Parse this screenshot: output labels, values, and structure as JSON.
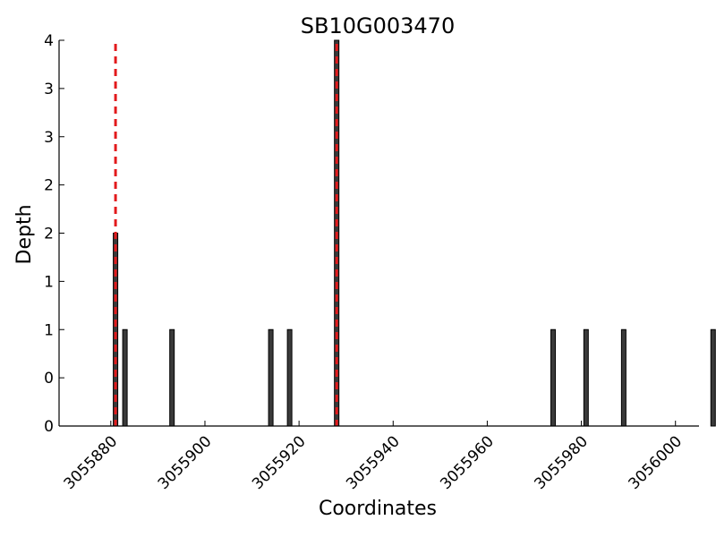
{
  "chart_data": {
    "type": "bar",
    "title": "SB10G003470",
    "xlabel": "Coordinates",
    "ylabel": "Depth",
    "xlim": [
      3055869,
      3056005
    ],
    "ylim": [
      0,
      4
    ],
    "x_ticks": [
      3055880,
      3055900,
      3055920,
      3055940,
      3055960,
      3055980,
      3056000
    ],
    "y_tick_values": [
      0,
      0.5,
      1,
      1.5,
      2,
      2.5,
      3,
      3.5,
      4
    ],
    "y_tick_labels": [
      "0",
      "0",
      "1",
      "1",
      "2",
      "2",
      "3",
      "3",
      "4"
    ],
    "bar_color": "#3a3a3a",
    "bars": [
      {
        "x": 3055881,
        "depth": 2
      },
      {
        "x": 3055883,
        "depth": 1
      },
      {
        "x": 3055893,
        "depth": 1
      },
      {
        "x": 3055914,
        "depth": 1
      },
      {
        "x": 3055918,
        "depth": 1
      },
      {
        "x": 3055928,
        "depth": 4
      },
      {
        "x": 3055974,
        "depth": 1
      },
      {
        "x": 3055981,
        "depth": 1
      },
      {
        "x": 3055989,
        "depth": 1
      },
      {
        "x": 3056008,
        "depth": 1
      }
    ],
    "markers": [
      3055881,
      3055928
    ],
    "marker_color": "#e31a1c",
    "marker_style": "dashed",
    "grid": false
  }
}
